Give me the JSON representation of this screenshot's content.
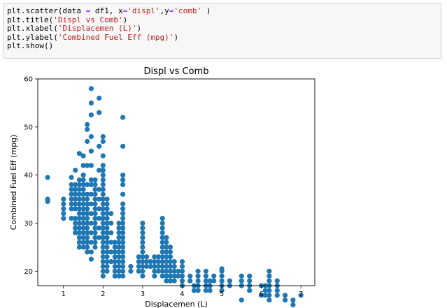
{
  "code_cell": {
    "lines": [
      [
        {
          "t": "plt",
          "c": ""
        },
        {
          "t": ".scatter(data ",
          "c": ""
        },
        {
          "t": "=",
          "c": "op"
        },
        {
          "t": " df1, x",
          "c": ""
        },
        {
          "t": "=",
          "c": "op"
        },
        {
          "t": "'displ'",
          "c": "str"
        },
        {
          "t": ",y",
          "c": ""
        },
        {
          "t": "=",
          "c": "op"
        },
        {
          "t": "'comb'",
          "c": "str"
        },
        {
          "t": " )",
          "c": ""
        }
      ],
      [
        {
          "t": "plt",
          "c": ""
        },
        {
          "t": ".title(",
          "c": ""
        },
        {
          "t": "'Displ vs Comb'",
          "c": "str"
        },
        {
          "t": ")",
          "c": ""
        }
      ],
      [
        {
          "t": "plt",
          "c": ""
        },
        {
          "t": ".xlabel(",
          "c": ""
        },
        {
          "t": "'Displacemen (L)'",
          "c": "str"
        },
        {
          "t": ")",
          "c": ""
        }
      ],
      [
        {
          "t": "plt",
          "c": ""
        },
        {
          "t": ".ylabel(",
          "c": ""
        },
        {
          "t": "'Combined Fuel Eff (mpg)'",
          "c": "str"
        },
        {
          "t": ")",
          "c": ""
        }
      ],
      [
        {
          "t": "plt",
          "c": ""
        },
        {
          "t": ".show()",
          "c": ""
        }
      ]
    ],
    "colors": {
      "str": "#ba2121",
      "op": "#aa22ff",
      "background": "#f7f7f7",
      "border": "#cfcfcf"
    }
  },
  "chart_data": {
    "type": "scatter",
    "title": "Displ vs Comb",
    "xlabel": "Displacemen (L)",
    "ylabel": "Combined Fuel Eff (mpg)",
    "xlim": [
      0.35,
      7.35
    ],
    "ylim": [
      17.0,
      60.0
    ],
    "xticks": [
      1,
      2,
      3,
      4,
      5,
      6,
      7
    ],
    "yticks": [
      20,
      30,
      40,
      50,
      60
    ],
    "grid": false,
    "legend": "none",
    "marker_color": "#1f77b4",
    "columns": [
      {
        "x": 0.6,
        "y": [
          34.5,
          35.0,
          39.5
        ]
      },
      {
        "x": 1.0,
        "y": [
          31,
          32,
          33,
          34,
          35
        ]
      },
      {
        "x": 1.2,
        "y": [
          31,
          33,
          34,
          35,
          36,
          37,
          38,
          39.5
        ]
      },
      {
        "x": 1.3,
        "y": [
          28,
          29,
          30,
          31,
          33,
          34,
          35,
          36,
          37,
          38,
          41
        ]
      },
      {
        "x": 1.4,
        "y": [
          25,
          26,
          27,
          28,
          29,
          30,
          31,
          32,
          33,
          34,
          35,
          36,
          37,
          38,
          39,
          44.5
        ]
      },
      {
        "x": 1.5,
        "y": [
          25,
          26,
          27,
          28,
          29,
          30,
          31,
          32,
          33,
          34,
          35,
          36,
          37,
          38,
          39,
          40,
          42,
          44
        ]
      },
      {
        "x": 1.6,
        "y": [
          24,
          25,
          26,
          27,
          28,
          29,
          30,
          31,
          32,
          33,
          34,
          35,
          36,
          38,
          42,
          47,
          49.5,
          50.5
        ]
      },
      {
        "x": 1.7,
        "y": [
          22.5,
          24,
          26,
          28,
          30,
          32,
          34,
          36,
          38,
          39,
          42,
          45,
          48,
          52.5,
          55,
          58
        ]
      },
      {
        "x": 1.8,
        "y": [
          25,
          26,
          27,
          28,
          29,
          30,
          31,
          32,
          33,
          34,
          35,
          36,
          37,
          38,
          39
        ]
      },
      {
        "x": 1.9,
        "y": [
          27,
          29,
          31,
          33,
          35,
          37,
          41,
          46,
          53,
          56
        ]
      },
      {
        "x": 2.0,
        "y": [
          19,
          20,
          21,
          22,
          23,
          24,
          25,
          26,
          27,
          28,
          29,
          30,
          31,
          32,
          33,
          34,
          35,
          36,
          37,
          38,
          39,
          40,
          41,
          42,
          44,
          47,
          48
        ]
      },
      {
        "x": 2.1,
        "y": [
          20,
          21,
          22,
          23,
          24,
          25,
          26,
          27,
          28,
          29,
          30,
          31,
          32,
          33,
          34,
          35
        ]
      },
      {
        "x": 2.2,
        "y": [
          22,
          24,
          26,
          28,
          30,
          32
        ]
      },
      {
        "x": 2.3,
        "y": [
          19,
          20,
          21,
          22,
          23,
          24,
          25,
          26
        ]
      },
      {
        "x": 2.4,
        "y": [
          19,
          20,
          21,
          22,
          23,
          24,
          25,
          26,
          27,
          28,
          29,
          30
        ]
      },
      {
        "x": 2.5,
        "y": [
          19,
          20,
          21,
          22,
          23,
          24,
          25,
          26,
          27,
          28,
          29,
          30,
          31,
          32,
          33,
          34,
          36,
          38,
          39,
          40,
          46,
          52
        ]
      },
      {
        "x": 2.7,
        "y": [
          20,
          21
        ]
      },
      {
        "x": 2.9,
        "y": [
          20,
          21,
          22,
          23
        ]
      },
      {
        "x": 3.0,
        "y": [
          19,
          20,
          21,
          22,
          23,
          24,
          25,
          26,
          27,
          28,
          29,
          30
        ]
      },
      {
        "x": 3.1,
        "y": [
          21,
          22,
          23
        ]
      },
      {
        "x": 3.2,
        "y": [
          21,
          22
        ]
      },
      {
        "x": 3.3,
        "y": [
          19,
          20,
          21,
          22,
          23
        ]
      },
      {
        "x": 3.4,
        "y": [
          20,
          21,
          22,
          23
        ]
      },
      {
        "x": 3.5,
        "y": [
          19,
          20,
          21,
          22,
          23,
          24,
          25,
          26,
          27,
          28,
          29,
          30,
          31
        ]
      },
      {
        "x": 3.6,
        "y": [
          18,
          19,
          20,
          21,
          22,
          23,
          24,
          25,
          26,
          27
        ]
      },
      {
        "x": 3.7,
        "y": [
          18,
          19,
          20,
          21,
          22,
          23,
          24,
          25
        ]
      },
      {
        "x": 3.8,
        "y": [
          18,
          19,
          20,
          21,
          22
        ]
      },
      {
        "x": 3.9,
        "y": [
          19,
          20
        ]
      },
      {
        "x": 4.0,
        "y": [
          17,
          18,
          19,
          20,
          21,
          22
        ]
      },
      {
        "x": 4.2,
        "y": [
          18,
          19
        ]
      },
      {
        "x": 4.3,
        "y": [
          16,
          17
        ]
      },
      {
        "x": 4.4,
        "y": [
          16,
          17,
          18,
          19,
          20
        ]
      },
      {
        "x": 4.6,
        "y": [
          16,
          17,
          18,
          19,
          20
        ]
      },
      {
        "x": 4.7,
        "y": [
          16,
          17,
          18
        ]
      },
      {
        "x": 4.8,
        "y": [
          18,
          19
        ]
      },
      {
        "x": 5.0,
        "y": [
          16,
          17,
          18,
          19,
          20,
          20.5
        ]
      },
      {
        "x": 5.2,
        "y": [
          17,
          18
        ]
      },
      {
        "x": 5.5,
        "y": [
          14,
          17,
          18,
          19
        ]
      },
      {
        "x": 5.7,
        "y": [
          16,
          17,
          18,
          19
        ]
      },
      {
        "x": 6.0,
        "y": [
          15,
          17
        ]
      },
      {
        "x": 6.1,
        "y": [
          15,
          16,
          17
        ]
      },
      {
        "x": 6.2,
        "y": [
          14,
          15,
          16,
          17,
          18,
          19,
          20
        ]
      },
      {
        "x": 6.4,
        "y": [
          15,
          16,
          17,
          18
        ]
      },
      {
        "x": 6.6,
        "y": [
          14,
          15
        ]
      },
      {
        "x": 6.8,
        "y": [
          13,
          14
        ]
      },
      {
        "x": 7.0,
        "y": [
          15
        ]
      }
    ]
  }
}
